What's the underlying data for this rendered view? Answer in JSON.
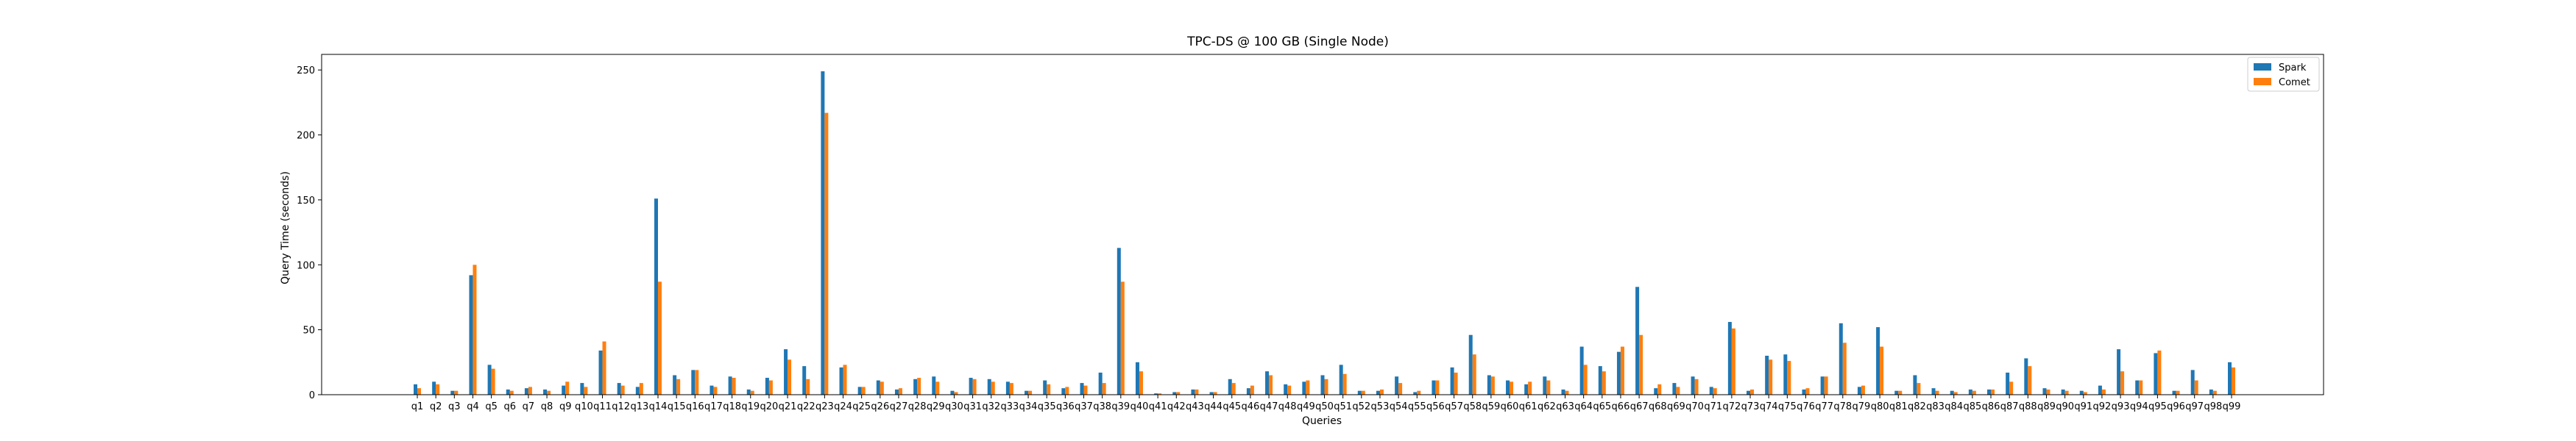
{
  "chart_data": {
    "type": "bar",
    "title": "TPC-DS @ 100 GB (Single Node)",
    "xlabel": "Queries",
    "ylabel": "Query Time (seconds)",
    "ylim": [
      0,
      262
    ],
    "yticks": [
      0,
      50,
      100,
      150,
      200,
      250
    ],
    "grid": false,
    "legend_position": "top-right",
    "categories": [
      "q1",
      "q2",
      "q3",
      "q4",
      "q5",
      "q6",
      "q7",
      "q8",
      "q9",
      "q10",
      "q11",
      "q12",
      "q13",
      "q14",
      "q15",
      "q16",
      "q17",
      "q18",
      "q19",
      "q20",
      "q21",
      "q22",
      "q23",
      "q24",
      "q25",
      "q26",
      "q27",
      "q28",
      "q29",
      "q30",
      "q31",
      "q32",
      "q33",
      "q34",
      "q35",
      "q36",
      "q37",
      "q38",
      "q39",
      "q40",
      "q41",
      "q42",
      "q43",
      "q44",
      "q45",
      "q46",
      "q47",
      "q48",
      "q49",
      "q50",
      "q51",
      "q52",
      "q53",
      "q54",
      "q55",
      "q56",
      "q57",
      "q58",
      "q59",
      "q60",
      "q61",
      "q62",
      "q63",
      "q64",
      "q65",
      "q66",
      "q67",
      "q68",
      "q69",
      "q70",
      "q71",
      "q72",
      "q73",
      "q74",
      "q75",
      "q76",
      "q77",
      "q78",
      "q79",
      "q80",
      "q81",
      "q82",
      "q83",
      "q84",
      "q85",
      "q86",
      "q87",
      "q88",
      "q89",
      "q90",
      "q91",
      "q92",
      "q93",
      "q94",
      "q95",
      "q96",
      "q97",
      "q98",
      "q99"
    ],
    "series": [
      {
        "name": "Spark",
        "color": "#1f77b4",
        "values": [
          8,
          10,
          3,
          92,
          23,
          4,
          5,
          4,
          7,
          9,
          34,
          9,
          6,
          151,
          15,
          19,
          7,
          14,
          4,
          13,
          35,
          22,
          249,
          21,
          6,
          11,
          4,
          12,
          14,
          3,
          13,
          12,
          10,
          3,
          11,
          5,
          9,
          17,
          113,
          25,
          1,
          2,
          4,
          2,
          12,
          5,
          18,
          8,
          10,
          15,
          23,
          3,
          3,
          14,
          2,
          11,
          21,
          46,
          15,
          11,
          8,
          14,
          4,
          37,
          22,
          33,
          83,
          5,
          9,
          14,
          6,
          56,
          3,
          30,
          31,
          4,
          14,
          55,
          6,
          52,
          3,
          15,
          5,
          3,
          4,
          4,
          17,
          28,
          5,
          4,
          3,
          7,
          35,
          11,
          32,
          3,
          19,
          4,
          25
        ]
      },
      {
        "name": "Comet",
        "color": "#ff7f0e",
        "values": [
          5,
          8,
          3,
          100,
          20,
          3,
          6,
          3,
          10,
          6,
          41,
          7,
          9,
          87,
          12,
          19,
          6,
          13,
          3,
          11,
          27,
          12,
          217,
          23,
          6,
          10,
          5,
          13,
          10,
          2,
          12,
          10,
          9,
          3,
          8,
          6,
          7,
          9,
          87,
          18,
          1,
          2,
          4,
          2,
          9,
          7,
          15,
          7,
          11,
          12,
          16,
          3,
          4,
          9,
          3,
          11,
          17,
          31,
          14,
          10,
          10,
          11,
          3,
          23,
          18,
          37,
          46,
          8,
          6,
          12,
          5,
          51,
          4,
          27,
          26,
          5,
          14,
          40,
          7,
          37,
          3,
          9,
          3,
          2,
          3,
          4,
          10,
          22,
          4,
          3,
          2,
          4,
          18,
          11,
          34,
          3,
          11,
          3,
          21
        ]
      }
    ]
  }
}
